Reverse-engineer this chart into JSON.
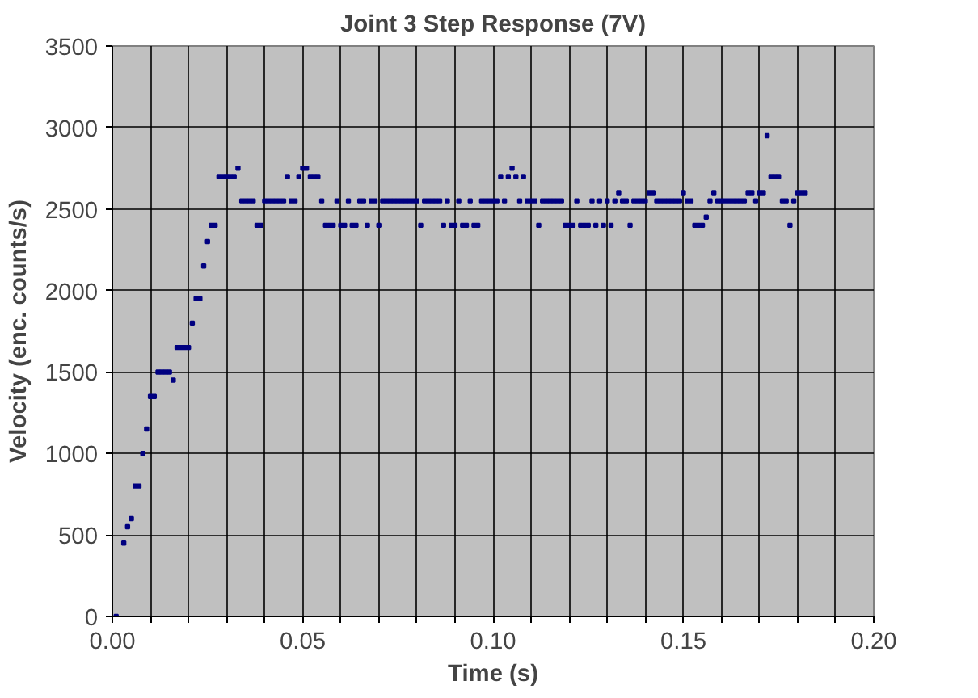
{
  "chart_data": {
    "type": "scatter",
    "title": "Joint 3 Step Response (7V)",
    "xlabel": "Time (s)",
    "ylabel": "Velocity (enc. counts/s)",
    "x": [
      0.001,
      0.003,
      0.004,
      0.005,
      0.006,
      0.007,
      0.008,
      0.009,
      0.01,
      0.011,
      0.012,
      0.013,
      0.014,
      0.015,
      0.016,
      0.017,
      0.018,
      0.019,
      0.02,
      0.021,
      0.022,
      0.023,
      0.024,
      0.025,
      0.026,
      0.027,
      0.028,
      0.029,
      0.03,
      0.031,
      0.032,
      0.033,
      0.034,
      0.035,
      0.036,
      0.037,
      0.038,
      0.039,
      0.04,
      0.041,
      0.042,
      0.043,
      0.044,
      0.045,
      0.046,
      0.047,
      0.048,
      0.049,
      0.05,
      0.051,
      0.052,
      0.053,
      0.054,
      0.055,
      0.056,
      0.057,
      0.058,
      0.059,
      0.06,
      0.061,
      0.062,
      0.063,
      0.064,
      0.065,
      0.066,
      0.067,
      0.068,
      0.069,
      0.07,
      0.071,
      0.072,
      0.073,
      0.074,
      0.075,
      0.076,
      0.077,
      0.078,
      0.079,
      0.08,
      0.081,
      0.082,
      0.083,
      0.084,
      0.085,
      0.086,
      0.087,
      0.088,
      0.089,
      0.09,
      0.091,
      0.092,
      0.093,
      0.094,
      0.095,
      0.096,
      0.097,
      0.098,
      0.099,
      0.1,
      0.101,
      0.102,
      0.103,
      0.104,
      0.105,
      0.106,
      0.107,
      0.108,
      0.109,
      0.11,
      0.111,
      0.112,
      0.113,
      0.114,
      0.115,
      0.116,
      0.117,
      0.118,
      0.119,
      0.12,
      0.121,
      0.122,
      0.123,
      0.124,
      0.125,
      0.126,
      0.127,
      0.128,
      0.129,
      0.13,
      0.131,
      0.132,
      0.133,
      0.134,
      0.135,
      0.136,
      0.137,
      0.138,
      0.139,
      0.14,
      0.141,
      0.142,
      0.143,
      0.144,
      0.145,
      0.146,
      0.147,
      0.148,
      0.149,
      0.15,
      0.151,
      0.152,
      0.153,
      0.154,
      0.155,
      0.156,
      0.157,
      0.158,
      0.159,
      0.16,
      0.161,
      0.162,
      0.163,
      0.164,
      0.165,
      0.166,
      0.167,
      0.168,
      0.169,
      0.17,
      0.171,
      0.172,
      0.173,
      0.174,
      0.175,
      0.176,
      0.177,
      0.178,
      0.179,
      0.18,
      0.181,
      0.182
    ],
    "series": [
      {
        "color": "#000080",
        "values": [
          0,
          450,
          550,
          600,
          800,
          800,
          1000,
          1150,
          1350,
          1350,
          1500,
          1500,
          1500,
          1500,
          1450,
          1650,
          1650,
          1650,
          1650,
          1800,
          1950,
          1950,
          2150,
          2300,
          2400,
          2400,
          2700,
          2700,
          2700,
          2700,
          2700,
          2750,
          2550,
          2550,
          2550,
          2550,
          2400,
          2400,
          2550,
          2550,
          2550,
          2550,
          2550,
          2550,
          2700,
          2550,
          2550,
          2700,
          2750,
          2750,
          2700,
          2700,
          2700,
          2550,
          2400,
          2400,
          2400,
          2550,
          2400,
          2400,
          2550,
          2400,
          2400,
          2550,
          2550,
          2400,
          2550,
          2550,
          2400,
          2550,
          2550,
          2550,
          2550,
          2550,
          2550,
          2550,
          2550,
          2550,
          2550,
          2400,
          2550,
          2550,
          2550,
          2550,
          2550,
          2400,
          2550,
          2400,
          2400,
          2550,
          2400,
          2400,
          2550,
          2400,
          2400,
          2550,
          2550,
          2550,
          2550,
          2550,
          2700,
          2550,
          2700,
          2750,
          2700,
          2550,
          2700,
          2550,
          2550,
          2550,
          2400,
          2550,
          2550,
          2550,
          2550,
          2550,
          2550,
          2400,
          2400,
          2400,
          2550,
          2400,
          2400,
          2400,
          2550,
          2400,
          2550,
          2400,
          2550,
          2400,
          2550,
          2600,
          2550,
          2550,
          2400,
          2550,
          2550,
          2550,
          2550,
          2600,
          2600,
          2550,
          2550,
          2550,
          2550,
          2550,
          2550,
          2550,
          2600,
          2550,
          2550,
          2400,
          2400,
          2400,
          2450,
          2550,
          2600,
          2550,
          2550,
          2550,
          2550,
          2550,
          2550,
          2550,
          2550,
          2600,
          2600,
          2550,
          2600,
          2600,
          2950,
          2700,
          2700,
          2700,
          2550,
          2550,
          2400,
          2550,
          2600,
          2600,
          2600
        ]
      }
    ],
    "xlim": [
      0,
      0.2
    ],
    "ylim": [
      0,
      3500
    ],
    "xticks": [
      {
        "value": 0,
        "label": "0.00"
      },
      {
        "value": 0.01,
        "label": null
      },
      {
        "value": 0.02,
        "label": null
      },
      {
        "value": 0.03,
        "label": null
      },
      {
        "value": 0.04,
        "label": null
      },
      {
        "value": 0.05,
        "label": "0.05"
      },
      {
        "value": 0.06,
        "label": null
      },
      {
        "value": 0.07,
        "label": null
      },
      {
        "value": 0.08,
        "label": null
      },
      {
        "value": 0.09,
        "label": null
      },
      {
        "value": 0.1,
        "label": "0.10"
      },
      {
        "value": 0.11,
        "label": null
      },
      {
        "value": 0.12,
        "label": null
      },
      {
        "value": 0.13,
        "label": null
      },
      {
        "value": 0.14,
        "label": null
      },
      {
        "value": 0.15,
        "label": "0.15"
      },
      {
        "value": 0.16,
        "label": null
      },
      {
        "value": 0.17,
        "label": null
      },
      {
        "value": 0.18,
        "label": null
      },
      {
        "value": 0.19,
        "label": null
      },
      {
        "value": 0.2,
        "label": "0.20"
      }
    ],
    "yticks": [
      0,
      500,
      1000,
      1500,
      2000,
      2500,
      3000,
      3500
    ],
    "grid": true,
    "marker": "square"
  }
}
